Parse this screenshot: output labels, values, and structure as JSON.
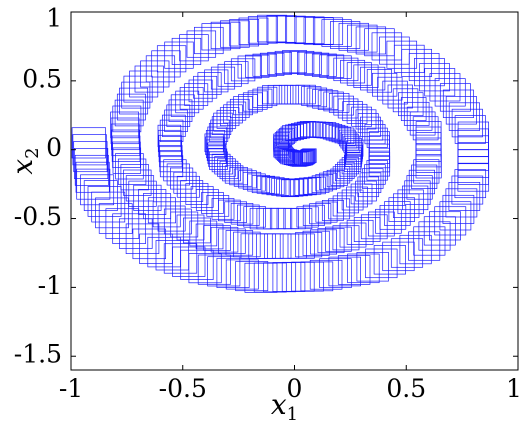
{
  "chart_data": {
    "type": "scatter",
    "marker": "box",
    "title": "",
    "xlabel": {
      "var": "x",
      "sub": "1"
    },
    "ylabel": {
      "var": "x",
      "sub": "2"
    },
    "xlim": [
      -1,
      1
    ],
    "ylim": [
      -1.6,
      1
    ],
    "xticks": [
      -1,
      -0.5,
      0,
      0.5,
      1
    ],
    "xtick_labels": [
      "-1",
      "-0.5",
      "0",
      "0.5",
      "1"
    ],
    "yticks": [
      -1.5,
      -1,
      -0.5,
      0,
      0.5,
      1
    ],
    "ytick_labels": [
      "-1.5",
      "-1",
      "-0.5",
      "0",
      "0.5",
      "1"
    ],
    "grid": false,
    "colors": {
      "boxes": "#1a1aff",
      "axes": "#000000",
      "background": "#ffffff"
    },
    "series": [
      {
        "box_half_width": {
          "start": 0.075,
          "end": 0.03
        },
        "box_half_height": {
          "start": 0.11,
          "end": 0.05
        },
        "points": [
          [
            -0.92,
            0.05
          ],
          [
            -0.9,
            -0.25
          ],
          [
            -0.8,
            -0.5
          ],
          [
            -0.62,
            -0.72
          ],
          [
            -0.4,
            -0.86
          ],
          [
            -0.15,
            -0.93
          ],
          [
            0.1,
            -0.92
          ],
          [
            0.35,
            -0.85
          ],
          [
            0.58,
            -0.7
          ],
          [
            0.72,
            -0.48
          ],
          [
            0.8,
            -0.2
          ],
          [
            0.8,
            0.1
          ],
          [
            0.72,
            0.38
          ],
          [
            0.58,
            0.6
          ],
          [
            0.38,
            0.78
          ],
          [
            0.15,
            0.86
          ],
          [
            -0.1,
            0.88
          ],
          [
            -0.35,
            0.82
          ],
          [
            -0.55,
            0.66
          ],
          [
            -0.7,
            0.44
          ],
          [
            -0.76,
            0.18
          ],
          [
            -0.75,
            -0.08
          ],
          [
            -0.68,
            -0.32
          ],
          [
            -0.55,
            -0.5
          ],
          [
            -0.38,
            -0.63
          ],
          [
            -0.18,
            -0.7
          ],
          [
            0.03,
            -0.7
          ],
          [
            0.23,
            -0.64
          ],
          [
            0.42,
            -0.52
          ],
          [
            0.54,
            -0.35
          ],
          [
            0.6,
            -0.12
          ],
          [
            0.6,
            0.12
          ],
          [
            0.52,
            0.33
          ],
          [
            0.38,
            0.5
          ],
          [
            0.2,
            0.6
          ],
          [
            0.0,
            0.64
          ],
          [
            -0.2,
            0.6
          ],
          [
            -0.38,
            0.48
          ],
          [
            -0.5,
            0.32
          ],
          [
            -0.56,
            0.1
          ],
          [
            -0.55,
            -0.12
          ],
          [
            -0.46,
            -0.3
          ],
          [
            -0.32,
            -0.43
          ],
          [
            -0.15,
            -0.5
          ],
          [
            0.03,
            -0.5
          ],
          [
            0.2,
            -0.43
          ],
          [
            0.32,
            -0.3
          ],
          [
            0.38,
            -0.12
          ],
          [
            0.38,
            0.06
          ],
          [
            0.32,
            0.22
          ],
          [
            0.2,
            0.34
          ],
          [
            0.05,
            0.4
          ],
          [
            -0.1,
            0.4
          ],
          [
            -0.23,
            0.32
          ],
          [
            -0.32,
            0.2
          ],
          [
            -0.36,
            0.05
          ],
          [
            -0.34,
            -0.08
          ],
          [
            -0.27,
            -0.18
          ],
          [
            -0.15,
            -0.25
          ],
          [
            -0.02,
            -0.28
          ],
          [
            0.1,
            -0.26
          ],
          [
            0.2,
            -0.2
          ],
          [
            0.26,
            -0.1
          ],
          [
            0.27,
            0.01
          ],
          [
            0.23,
            0.1
          ],
          [
            0.15,
            0.14
          ],
          [
            0.06,
            0.15
          ],
          [
            -0.02,
            0.12
          ],
          [
            -0.06,
            0.06
          ],
          [
            -0.06,
            0.0
          ],
          [
            -0.03,
            -0.05
          ],
          [
            0.02,
            -0.07
          ],
          [
            0.05,
            -0.06
          ],
          [
            0.07,
            -0.04
          ]
        ]
      }
    ]
  }
}
